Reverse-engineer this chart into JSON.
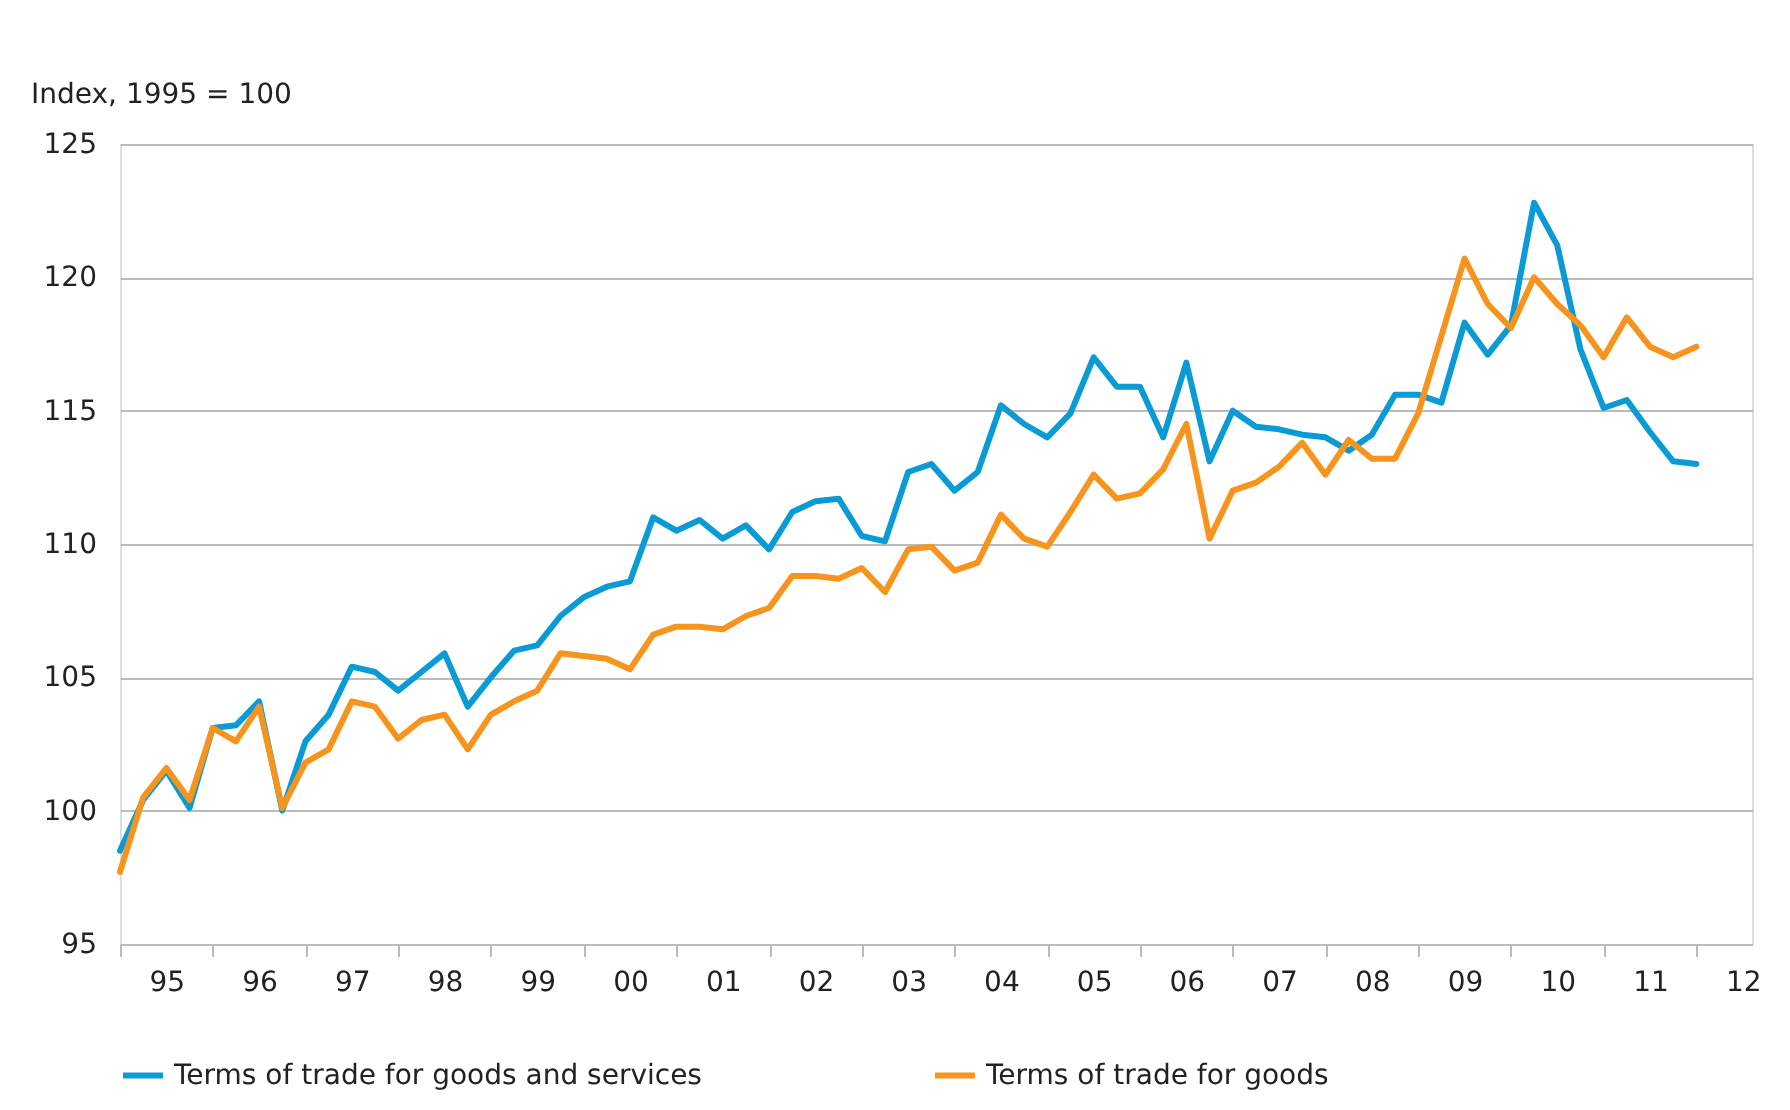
{
  "chart_data": {
    "type": "line",
    "ylabel": "Index, 1995 = 100",
    "categories": [
      null,
      null,
      "95",
      null,
      null,
      null,
      "96",
      null,
      null,
      null,
      "97",
      null,
      null,
      null,
      "98",
      null,
      null,
      null,
      "99",
      null,
      null,
      null,
      "00",
      null,
      null,
      null,
      "01",
      null,
      null,
      null,
      "02",
      null,
      null,
      null,
      "03",
      null,
      null,
      null,
      "04",
      null,
      null,
      null,
      "05",
      null,
      null,
      null,
      "06",
      null,
      null,
      null,
      "07",
      null,
      null,
      null,
      "08",
      null,
      null,
      null,
      "09",
      null,
      null,
      null,
      "10",
      null,
      null,
      null,
      "11",
      null,
      null,
      null,
      "12"
    ],
    "series": [
      {
        "name": "Terms of trade for goods and services",
        "color": "#0a9bd6",
        "values": [
          98.5,
          100.4,
          101.5,
          100.1,
          103.1,
          103.2,
          104.1,
          100.0,
          102.6,
          103.6,
          105.4,
          105.2,
          104.5,
          105.2,
          105.9,
          103.9,
          105.0,
          106.0,
          106.2,
          107.3,
          108.0,
          108.4,
          108.6,
          111.0,
          110.5,
          110.9,
          110.2,
          110.7,
          109.8,
          111.2,
          111.6,
          111.7,
          110.3,
          110.1,
          112.7,
          113.0,
          112.0,
          112.7,
          115.2,
          114.5,
          114.0,
          114.9,
          117.0,
          115.9,
          115.9,
          114.0,
          116.8,
          113.1,
          115.0,
          114.4,
          114.3,
          114.1,
          114.0,
          113.5,
          114.1,
          115.6,
          115.6,
          115.3,
          118.3,
          117.1,
          118.2,
          122.8,
          121.2,
          117.3,
          115.1,
          115.4,
          114.2,
          113.1,
          113.0,
          null,
          null
        ]
      },
      {
        "name": "Terms of trade for goods",
        "color": "#f7941d",
        "values": [
          97.7,
          100.5,
          101.6,
          100.4,
          103.1,
          102.6,
          103.9,
          100.1,
          101.8,
          102.3,
          104.1,
          103.9,
          102.7,
          103.4,
          103.6,
          102.3,
          103.6,
          104.1,
          104.5,
          105.9,
          105.8,
          105.7,
          105.3,
          106.6,
          106.9,
          106.9,
          106.8,
          107.3,
          107.6,
          108.8,
          108.8,
          108.7,
          109.1,
          108.2,
          109.8,
          109.9,
          109.0,
          109.3,
          111.1,
          110.2,
          109.9,
          111.2,
          112.6,
          111.7,
          111.9,
          112.8,
          114.5,
          110.2,
          112.0,
          112.3,
          112.9,
          113.8,
          112.6,
          113.9,
          113.2,
          113.2,
          114.9,
          117.8,
          120.7,
          119.0,
          118.1,
          120.0,
          119.0,
          118.2,
          117.0,
          118.5,
          117.4,
          117.0,
          117.4,
          null,
          null
        ]
      }
    ],
    "ylim": [
      95,
      125
    ],
    "yticks": [
      95,
      100,
      105,
      110,
      115,
      120,
      125
    ],
    "grid": "y",
    "legend": "bottom",
    "marker": "none",
    "line_style": "solid"
  }
}
